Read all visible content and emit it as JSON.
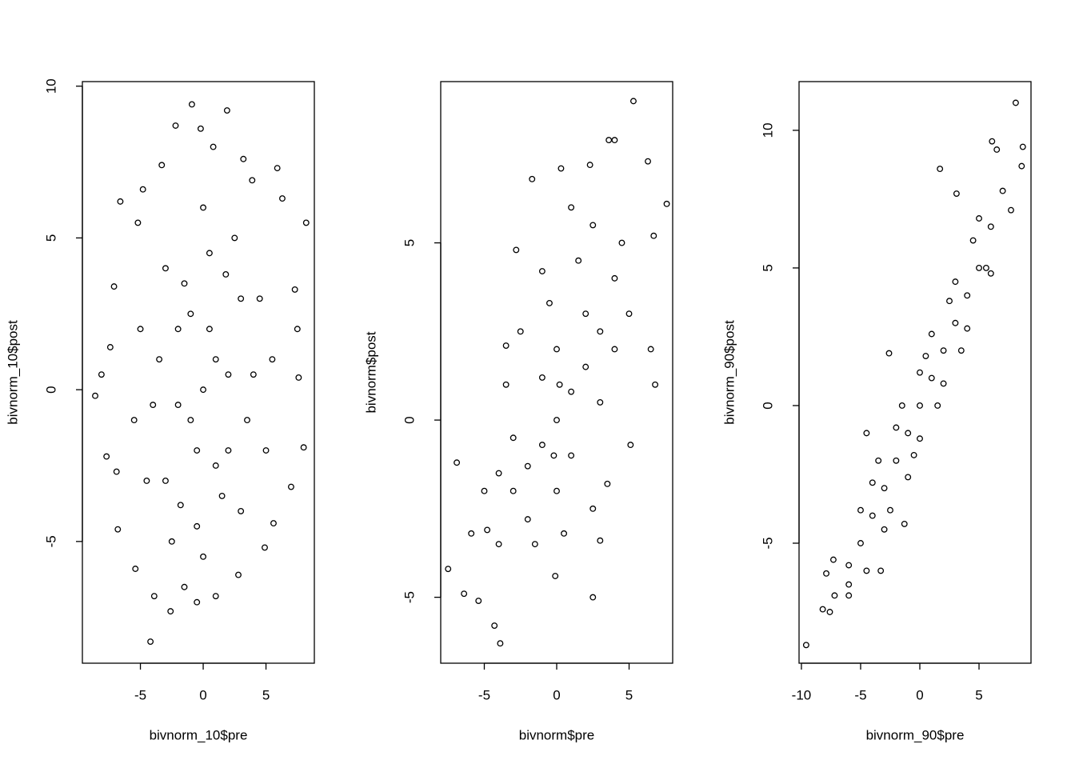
{
  "chart_data": [
    {
      "type": "scatter",
      "x_label": "bivnorm_10$pre",
      "y_label": "bivnorm_10$post",
      "xlim": [
        -9.62,
        8.85
      ],
      "ylim": [
        -9.01,
        10.15
      ],
      "xticks": [
        -5,
        0,
        5
      ],
      "yticks": [
        -5,
        0,
        5,
        10
      ],
      "color": "#000000",
      "x": [
        -4.2,
        -0.9,
        1.9,
        8.2,
        -8.6,
        8.0,
        -2.6,
        -7.7,
        -3.9,
        7.5,
        -8.1,
        -6.6,
        5.9,
        -0.2,
        -2.2,
        7.0,
        -6.8,
        -5.4,
        1.0,
        6.3,
        -7.1,
        7.3,
        -6.9,
        2.8,
        -1.5,
        0.8,
        3.2,
        -3.3,
        4.9,
        -5.2,
        5.6,
        -7.4,
        7.6,
        -4.8,
        3.9,
        -0.5,
        0,
        1,
        -1,
        2,
        -2,
        3,
        -3,
        1.5,
        -1.5,
        3.5,
        -3.5,
        0.5,
        -0.5,
        4,
        -4,
        2.5,
        -2.5,
        0,
        0,
        4.5,
        -4.5,
        5,
        -5,
        1,
        -1,
        2,
        -2,
        0.5,
        -0.5,
        3,
        -3,
        5.5,
        -5.5,
        1.8,
        -1.8
      ],
      "y": [
        -8.3,
        9.4,
        9.2,
        5.5,
        -0.2,
        -1.9,
        -7.3,
        -2.2,
        -6.8,
        2.0,
        0.5,
        6.2,
        7.3,
        8.6,
        8.7,
        -3.2,
        -4.6,
        -5.9,
        -6.8,
        6.3,
        3.4,
        3.3,
        -2.7,
        -6.1,
        -6.5,
        8.0,
        7.6,
        7.4,
        -5.2,
        5.5,
        -4.4,
        1.4,
        0.4,
        6.6,
        6.9,
        -7.0,
        0,
        1,
        -1,
        -2,
        2,
        3,
        -3,
        -3.5,
        3.5,
        -1,
        1,
        4.5,
        -4.5,
        0.5,
        -0.5,
        5,
        -5,
        6,
        -5.5,
        3,
        -3,
        -2,
        2,
        -2.5,
        2.5,
        0.5,
        -0.5,
        2,
        -2,
        -4,
        4,
        1,
        -1,
        3.8,
        -3.8
      ]
    },
    {
      "type": "scatter",
      "x_label": "bivnorm$pre",
      "y_label": "bivnorm$post",
      "xlim": [
        -8.01,
        8.01
      ],
      "ylim": [
        -6.86,
        9.55
      ],
      "xticks": [
        -5,
        0,
        5
      ],
      "yticks": [
        -5,
        0,
        5
      ],
      "color": "#000000",
      "x": [
        5.3,
        7.6,
        -7.5,
        -3.9,
        3.6,
        4.0,
        6.3,
        -6.4,
        -6.9,
        2.5,
        6.8,
        -1.7,
        6.7,
        -5.9,
        5.1,
        -4.8,
        -2.8,
        -3.5,
        3.0,
        6.5,
        -5.4,
        -0.1,
        0.3,
        2.3,
        -4.3,
        0,
        1,
        -1,
        2,
        -2,
        3,
        -3,
        1,
        -1,
        2,
        -2,
        0,
        0,
        3,
        -3,
        4,
        -4,
        1.5,
        -1.5,
        2.5,
        4,
        -4,
        0.5,
        -0.5,
        3.5,
        -3.5,
        2.5,
        -2.5,
        4.5,
        1,
        -1,
        -5,
        5,
        0.2,
        -0.2
      ],
      "y": [
        9.0,
        6.1,
        -4.2,
        -6.3,
        7.9,
        7.9,
        7.3,
        -4.9,
        -1.2,
        -5.0,
        1.0,
        6.8,
        5.2,
        -3.2,
        -0.7,
        -3.1,
        4.8,
        2.1,
        -3.4,
        2.0,
        -5.1,
        -4.4,
        7.1,
        7.2,
        -5.8,
        0,
        0.8,
        -0.7,
        1.5,
        -1.3,
        2.5,
        -2,
        -1,
        1.2,
        3,
        -2.8,
        2,
        -2,
        0.5,
        -0.5,
        4,
        -3.5,
        4.5,
        -3.5,
        5.5,
        2,
        -1.5,
        -3.2,
        3.3,
        -1.8,
        1,
        -2.5,
        2.5,
        5,
        6,
        4.2,
        -2,
        3,
        1,
        -1
      ]
    },
    {
      "type": "scatter",
      "x_label": "bivnorm_90$pre",
      "y_label": "bivnorm_90$post",
      "xlim": [
        -10.2,
        9.39
      ],
      "ylim": [
        -9.36,
        11.77
      ],
      "xticks": [
        -10,
        -5,
        0,
        5
      ],
      "yticks": [
        -5,
        0,
        5,
        10
      ],
      "color": "#000000",
      "x": [
        8.1,
        8.7,
        -9.6,
        -8.2,
        -7.6,
        8.6,
        6.1,
        -7.3,
        -7.2,
        6.5,
        -6.0,
        -3.3,
        -1.3,
        1.7,
        5.6,
        7.7,
        -4.5,
        -2.6,
        3.1,
        -7.9,
        0,
        1,
        -1,
        2,
        -2,
        3,
        -3,
        4,
        -4,
        5,
        -5,
        6,
        -6,
        0.5,
        -0.5,
        1.5,
        -1.5,
        2.5,
        -2.5,
        3.5,
        -3.5,
        4.5,
        -4.5,
        0,
        0,
        2,
        -2,
        1,
        -1,
        3,
        -3,
        4,
        -4,
        5,
        -5,
        6,
        -6,
        7
      ],
      "y": [
        11.0,
        9.4,
        -8.7,
        -7.4,
        -7.5,
        8.7,
        9.6,
        -5.6,
        -6.9,
        9.3,
        -6.9,
        -6.0,
        -4.3,
        8.6,
        5.0,
        7.1,
        -1.0,
        1.9,
        7.7,
        -6.1,
        0,
        1,
        -1,
        2,
        -2,
        3,
        -3,
        4,
        -4,
        5,
        -5,
        6.5,
        -5.8,
        1.8,
        -1.8,
        0,
        0,
        3.8,
        -3.8,
        2,
        -2,
        6,
        -6,
        -1.2,
        1.2,
        0.8,
        -0.8,
        2.6,
        -2.6,
        4.5,
        -4.5,
        2.8,
        -2.8,
        6.8,
        -3.8,
        4.8,
        -6.5,
        7.8
      ]
    }
  ]
}
